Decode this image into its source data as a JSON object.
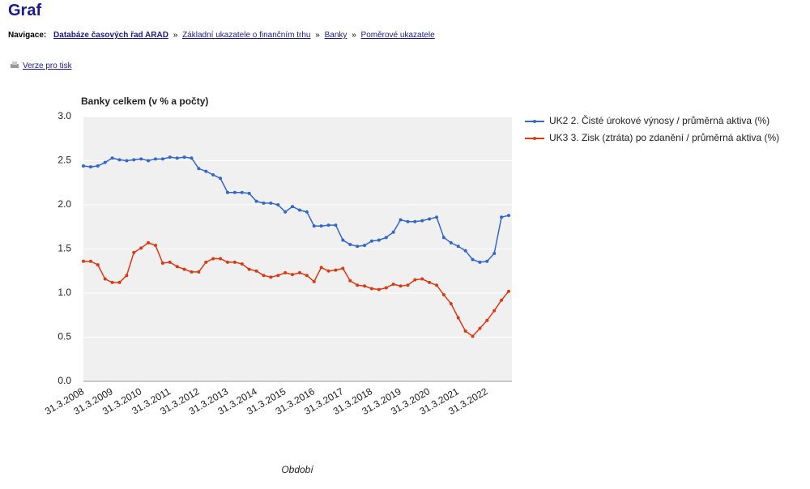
{
  "header": {
    "title": "Graf"
  },
  "navigation": {
    "label": "Navigace:",
    "separator": "»",
    "links": [
      "Databáze časových řad ARAD",
      "Základní ukazatele o finančním trhu",
      "Banky",
      "Poměrové ukazatele"
    ]
  },
  "print_link": "Verze pro tisk",
  "chart_data": {
    "type": "line",
    "title": "Banky celkem (v % a počty)",
    "x_label": "Období",
    "categories": [
      "31.3.2008",
      null,
      null,
      null,
      "31.3.2009",
      null,
      null,
      null,
      "31.3.2010",
      null,
      null,
      null,
      "31.3.2011",
      null,
      null,
      null,
      "31.3.2012",
      null,
      null,
      null,
      "31.3.2013",
      null,
      null,
      null,
      "31.3.2014",
      null,
      null,
      null,
      "31.3.2015",
      null,
      null,
      null,
      "31.3.2016",
      null,
      null,
      null,
      "31.3.2017",
      null,
      null,
      null,
      "31.3.2018",
      null,
      null,
      null,
      "31.3.2019",
      null,
      null,
      null,
      "31.3.2020",
      null,
      null,
      null,
      "31.3.2021",
      null,
      null,
      null,
      "31.3.2022",
      null,
      null,
      null
    ],
    "series": [
      {
        "name": "UK2 2. Čisté úrokové výnosy / průměrná aktiva (%)",
        "color": "#3366cc",
        "values": [
          2.44,
          2.43,
          2.44,
          2.48,
          2.53,
          2.51,
          2.5,
          2.51,
          2.52,
          2.5,
          2.52,
          2.52,
          2.54,
          2.53,
          2.54,
          2.53,
          2.41,
          2.38,
          2.34,
          2.3,
          2.14,
          2.14,
          2.14,
          2.13,
          2.04,
          2.02,
          2.02,
          2.0,
          1.92,
          1.98,
          1.94,
          1.92,
          1.76,
          1.76,
          1.77,
          1.77,
          1.6,
          1.55,
          1.53,
          1.54,
          1.59,
          1.6,
          1.63,
          1.69,
          1.83,
          1.81,
          1.81,
          1.82,
          1.84,
          1.86,
          1.63,
          1.57,
          1.53,
          1.48,
          1.38,
          1.35,
          1.36,
          1.45,
          1.86,
          1.88
        ]
      },
      {
        "name": "UK3 3. Zisk (ztráta) po zdanění / průměrná aktiva (%)",
        "color": "#dc3912",
        "values": [
          1.36,
          1.36,
          1.32,
          1.16,
          1.12,
          1.12,
          1.2,
          1.46,
          1.51,
          1.57,
          1.54,
          1.34,
          1.35,
          1.3,
          1.27,
          1.24,
          1.24,
          1.35,
          1.39,
          1.39,
          1.35,
          1.35,
          1.33,
          1.27,
          1.25,
          1.2,
          1.18,
          1.2,
          1.23,
          1.21,
          1.23,
          1.2,
          1.13,
          1.29,
          1.25,
          1.26,
          1.28,
          1.14,
          1.09,
          1.08,
          1.05,
          1.04,
          1.06,
          1.1,
          1.08,
          1.09,
          1.15,
          1.16,
          1.12,
          1.09,
          0.98,
          0.88,
          0.72,
          0.57,
          0.51,
          0.6,
          0.69,
          0.8,
          0.92,
          1.02
        ]
      }
    ],
    "ylim": [
      0,
      3
    ],
    "yticks": [
      {
        "value": 0,
        "label": "0.0"
      },
      0.5,
      {
        "value": 1,
        "label": "1.0"
      },
      1.5,
      {
        "value": 2,
        "label": "2.0"
      },
      2.5,
      {
        "value": 3,
        "label": "3.0"
      }
    ],
    "grid": true,
    "legend": "right"
  }
}
